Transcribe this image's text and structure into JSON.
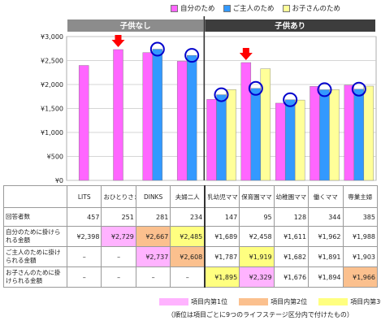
{
  "legend": [
    {
      "label": "自分のため",
      "color": "#ff66ff"
    },
    {
      "label": "ご主人のため",
      "color": "#3399ff"
    },
    {
      "label": "お子さんのため",
      "color": "#ffff99"
    }
  ],
  "groups": [
    {
      "label": "子供なし",
      "color": "#8c8c8c"
    },
    {
      "label": "子供あり",
      "color": "#3d3d3d"
    }
  ],
  "chart_data": {
    "type": "bar",
    "categories": [
      "LITS",
      "おひとりさま",
      "DINKS",
      "夫婦二人",
      "乳幼児ママ",
      "保育園ママ",
      "幼稚園ママ",
      "働くママ",
      "専業主婦"
    ],
    "series": [
      {
        "name": "自分のため",
        "color": "#ff66ff",
        "values": [
          2398,
          2729,
          2667,
          2485,
          1689,
          2458,
          1611,
          1962,
          1988
        ]
      },
      {
        "name": "ご主人のため",
        "color": "#3399ff",
        "values": [
          null,
          null,
          2737,
          2608,
          1787,
          1919,
          1682,
          1891,
          1903
        ]
      },
      {
        "name": "お子さんのため",
        "color": "#ffff99",
        "values": [
          null,
          null,
          null,
          null,
          1895,
          2329,
          1676,
          1894,
          1966
        ]
      }
    ],
    "ylim": [
      0,
      3000
    ],
    "yticks": [
      0,
      500,
      1000,
      1500,
      2000,
      2500,
      3000
    ],
    "ytick_labels": [
      "¥0",
      "¥500",
      "¥1,000",
      "¥1,500",
      "¥2,000",
      "¥2,500",
      "¥3,000"
    ],
    "grid": true,
    "highlight_arrows": [
      1,
      5
    ],
    "highlight_circles": [
      [
        2,
        1
      ],
      [
        3,
        1
      ],
      [
        4,
        1
      ],
      [
        5,
        1
      ],
      [
        6,
        1
      ],
      [
        7,
        1
      ],
      [
        8,
        1
      ]
    ]
  },
  "table": {
    "columns": [
      "LITS",
      "おひとりさま",
      "DINKS",
      "夫婦二人",
      "乳幼児ママ",
      "保育園ママ",
      "幼稚園ママ",
      "働くママ",
      "専業主婦"
    ],
    "rows": [
      {
        "label": "回答者数",
        "cells": [
          "457",
          "251",
          "281",
          "234",
          "147",
          "95",
          "128",
          "344",
          "385"
        ],
        "ranks": [
          0,
          0,
          0,
          0,
          0,
          0,
          0,
          0,
          0
        ]
      },
      {
        "label": "自分のために掛けられる金額",
        "cells": [
          "¥2,398",
          "¥2,729",
          "¥2,667",
          "¥2,485",
          "¥1,689",
          "¥2,458",
          "¥1,611",
          "¥1,962",
          "¥1,988"
        ],
        "ranks": [
          0,
          1,
          2,
          3,
          0,
          0,
          0,
          0,
          0
        ]
      },
      {
        "label": "ご主人のために掛けられる金額",
        "cells": [
          "–",
          "–",
          "¥2,737",
          "¥2,608",
          "¥1,787",
          "¥1,919",
          "¥1,682",
          "¥1,891",
          "¥1,903"
        ],
        "ranks": [
          0,
          0,
          1,
          2,
          0,
          3,
          0,
          0,
          0
        ]
      },
      {
        "label": "お子さんのために掛けられる金額",
        "cells": [
          "–",
          "–",
          "–",
          "–",
          "¥1,895",
          "¥2,329",
          "¥1,676",
          "¥1,894",
          "¥1,966"
        ],
        "ranks": [
          0,
          0,
          0,
          0,
          3,
          1,
          0,
          0,
          2
        ]
      }
    ]
  },
  "rank_legend": [
    {
      "label": "項目内第1位",
      "color": "#ffb3ff"
    },
    {
      "label": "項目内第2位",
      "color": "#fbc08e"
    },
    {
      "label": "項目内第3位",
      "color": "#ffff80"
    }
  ],
  "footnote": "（順位は項目ごとに9つのライフステージ区分内で付けたもの）"
}
